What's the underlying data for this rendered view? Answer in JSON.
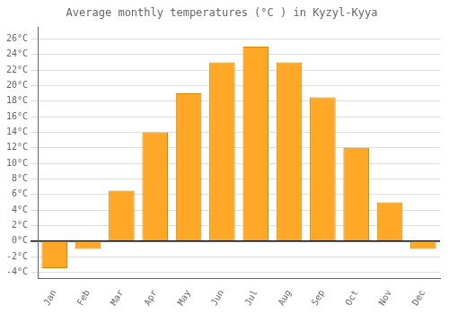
{
  "chart_data": {
    "type": "bar",
    "title": "Average monthly temperatures (°C ) in Kyzyl-Kyya",
    "categories": [
      "Jan",
      "Feb",
      "Mar",
      "Apr",
      "May",
      "Jun",
      "Jul",
      "Aug",
      "Sep",
      "Oct",
      "Nov",
      "Dec"
    ],
    "values": [
      -3.5,
      -1.0,
      6.5,
      14.0,
      19.0,
      23.0,
      25.0,
      23.0,
      18.5,
      12.0,
      5.0,
      -1.0
    ],
    "color": "#FFA726",
    "ylim": [
      -4.8,
      27.5
    ],
    "yticks": [
      {
        "value": -4,
        "label": "-4°C"
      },
      {
        "value": -2,
        "label": "-2°C"
      },
      {
        "value": 0,
        "label": "0°C"
      },
      {
        "value": 2,
        "label": "2°C"
      },
      {
        "value": 4,
        "label": "4°C"
      },
      {
        "value": 6,
        "label": "6°C"
      },
      {
        "value": 8,
        "label": "8°C"
      },
      {
        "value": 10,
        "label": "10°C"
      },
      {
        "value": 12,
        "label": "12°C"
      },
      {
        "value": 14,
        "label": "14°C"
      },
      {
        "value": 16,
        "label": "16°C"
      },
      {
        "value": 18,
        "label": "18°C"
      },
      {
        "value": 20,
        "label": "20°C"
      },
      {
        "value": 22,
        "label": "22°C"
      },
      {
        "value": 24,
        "label": "24°C"
      },
      {
        "value": 26,
        "label": "26°C"
      }
    ],
    "grid": true
  }
}
